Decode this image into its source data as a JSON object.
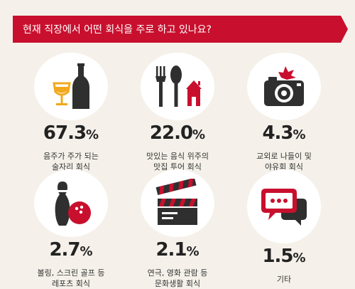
{
  "chart_data": {
    "type": "table",
    "title": "현재 직장에서 어떤 회식을 주로 하고 있나요?",
    "unit": "%",
    "items": [
      {
        "icon": "bottle-and-glass-icon",
        "value": 67.3,
        "value_label": "67.3",
        "label_lines": [
          "음주가 주가 되는",
          "술자리 회식"
        ]
      },
      {
        "icon": "fork-spoon-house-icon",
        "value": 22.0,
        "value_label": "22.0",
        "label_lines": [
          "맛있는 음식 위주의",
          "맛집 투어 회식"
        ]
      },
      {
        "icon": "camera-icon",
        "value": 4.3,
        "value_label": "4.3",
        "label_lines": [
          "교외로 나들이 및",
          "야유회 회식"
        ]
      },
      {
        "icon": "bowling-icon",
        "value": 2.7,
        "value_label": "2.7",
        "label_lines": [
          "볼링, 스크린 골프 등",
          "레포츠 회식"
        ]
      },
      {
        "icon": "clapperboard-icon",
        "value": 2.1,
        "value_label": "2.1",
        "label_lines": [
          "연극, 영화 관람 등",
          "문화생활 회식"
        ]
      },
      {
        "icon": "speech-bubble-icon",
        "value": 1.5,
        "value_label": "1.5",
        "label_lines": [
          "기타"
        ]
      }
    ]
  },
  "colors": {
    "accent": "#c8102e",
    "dark": "#2f2f2f",
    "gold": "#f2a81d",
    "background": "#f5f1ea"
  }
}
